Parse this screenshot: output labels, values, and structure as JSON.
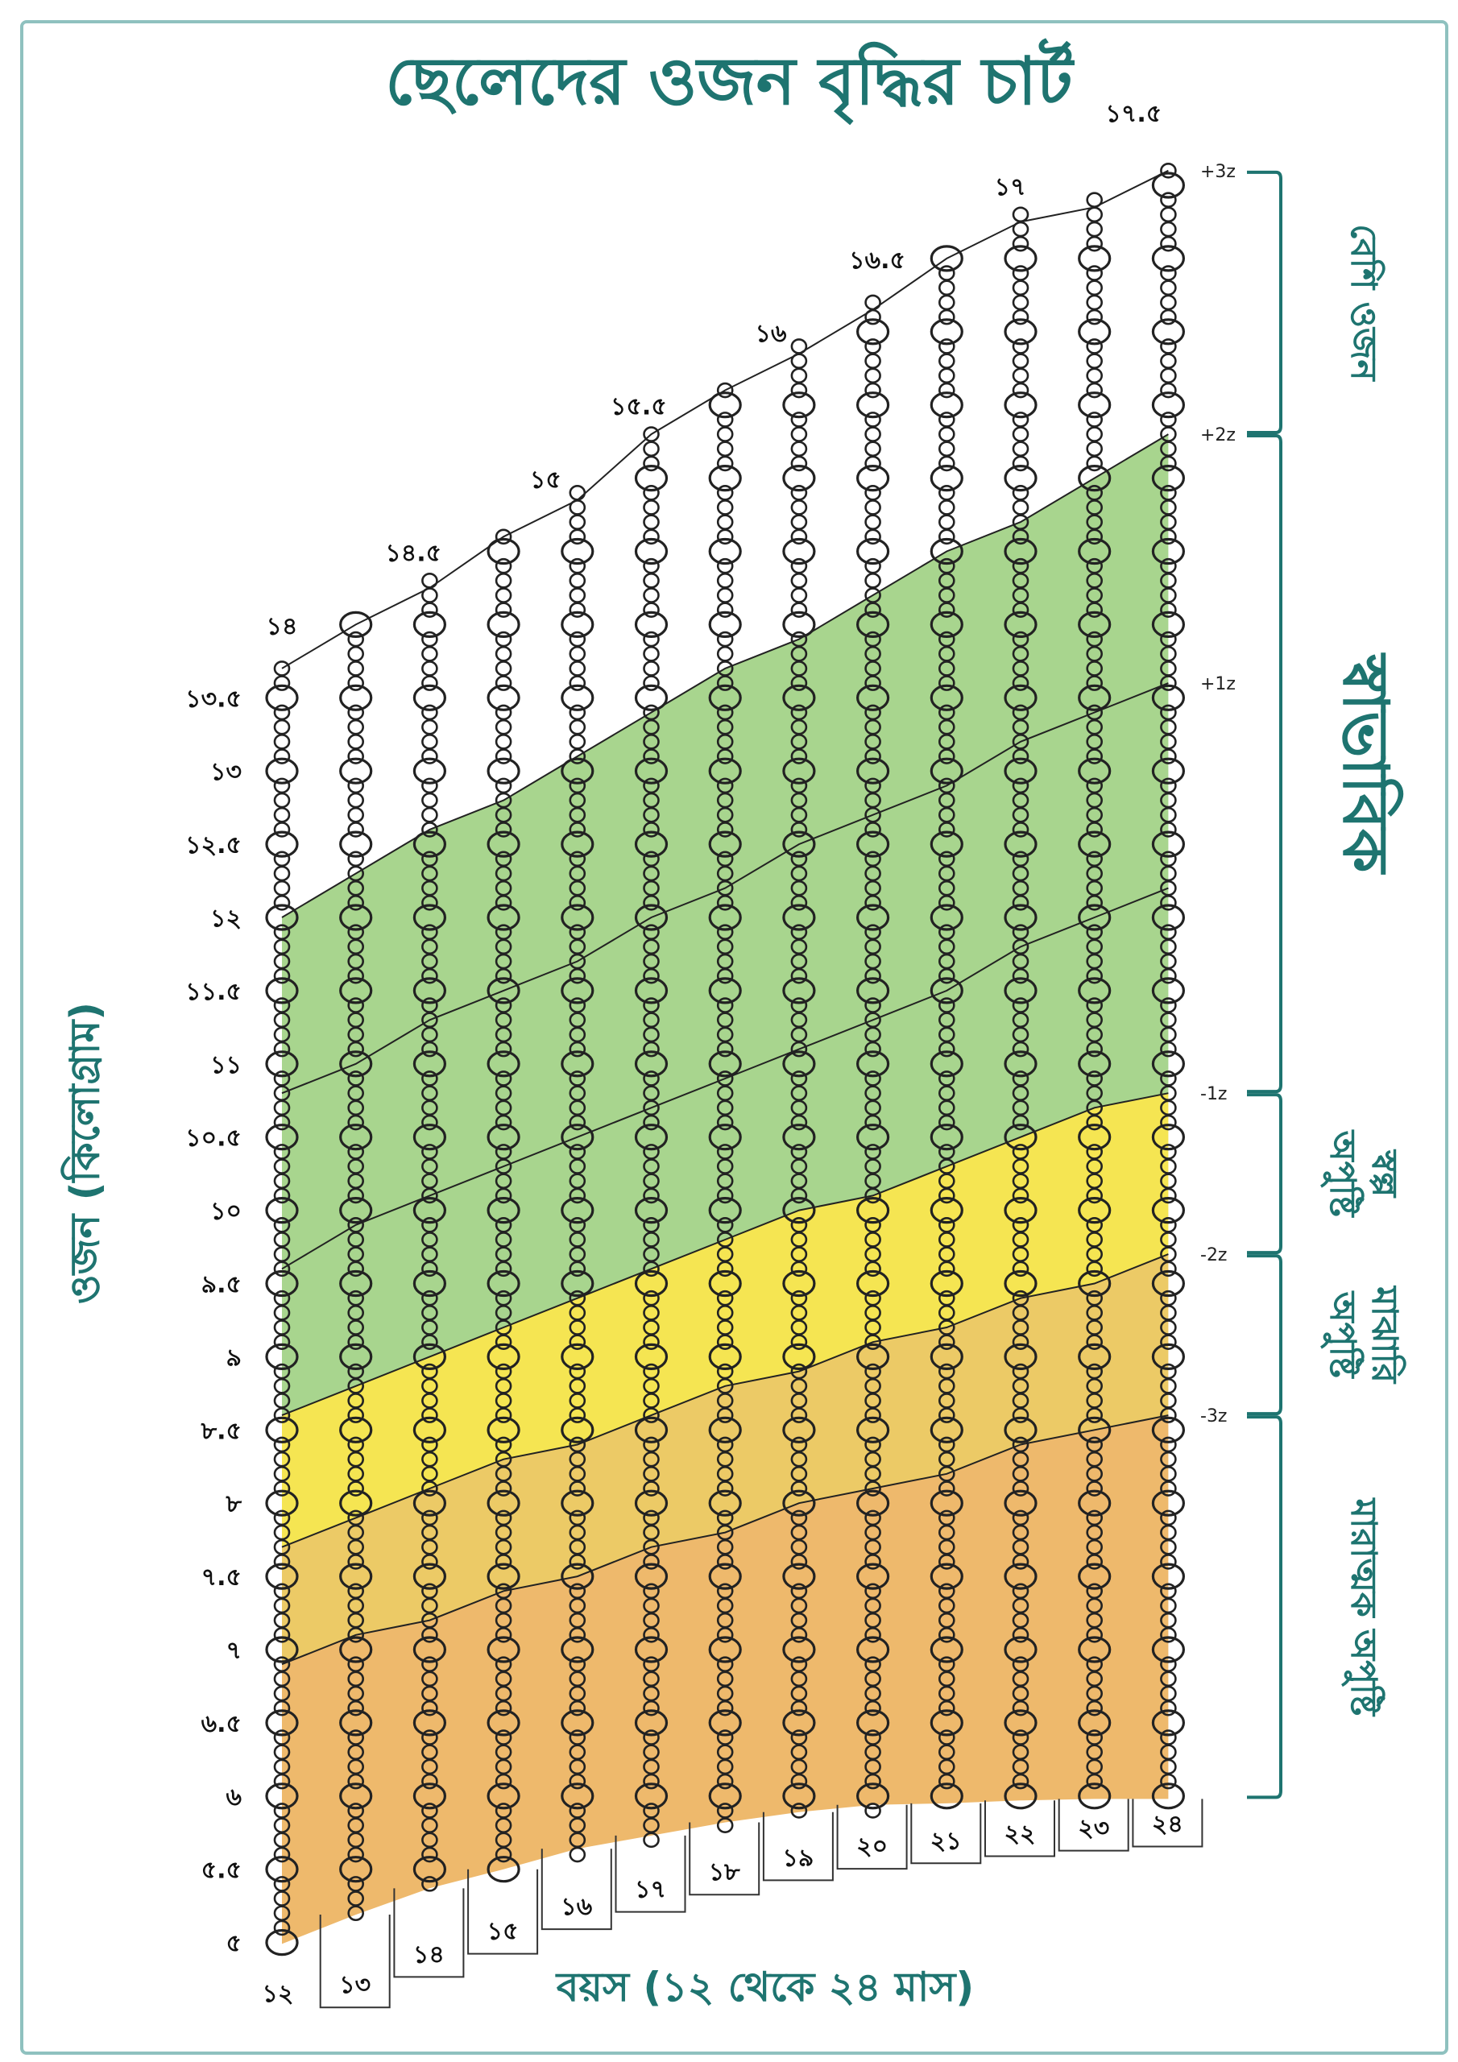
{
  "title": "ছেলেদের ওজন বৃদ্ধির চার্ট",
  "chart_data": {
    "type": "area",
    "title": "ছেলেদের ওজন বৃদ্ধির চার্ট",
    "xlabel": "বয়স (১২ থেকে ২৪ মাস)",
    "ylabel": "ওজন (কিলোগ্রাম)",
    "xlim": [
      12,
      24
    ],
    "ylim": [
      5,
      17.5
    ],
    "grid": false,
    "x": [
      12,
      13,
      14,
      15,
      16,
      17,
      18,
      19,
      20,
      21,
      22,
      23,
      24
    ],
    "x_tick_labels": [
      "১২",
      "১৩",
      "১৪",
      "১৫",
      "১৬",
      "১৭",
      "১৮",
      "১৯",
      "২০",
      "২১",
      "২২",
      "২৩",
      "২৪"
    ],
    "y_ticks": [
      {
        "value": 5,
        "label": "৫"
      },
      {
        "value": 5.5,
        "label": "৫.৫"
      },
      {
        "value": 6,
        "label": "৬"
      },
      {
        "value": 6.5,
        "label": "৬.৫"
      },
      {
        "value": 7,
        "label": "৭"
      },
      {
        "value": 7.5,
        "label": "৭.৫"
      },
      {
        "value": 8,
        "label": "৮"
      },
      {
        "value": 8.5,
        "label": "৮.৫"
      },
      {
        "value": 9,
        "label": "৯"
      },
      {
        "value": 9.5,
        "label": "৯.৫"
      },
      {
        "value": 10,
        "label": "১০"
      },
      {
        "value": 10.5,
        "label": "১০.৫"
      },
      {
        "value": 11,
        "label": "১১"
      },
      {
        "value": 11.5,
        "label": "১১.৫"
      },
      {
        "value": 12,
        "label": "১২"
      },
      {
        "value": 12.5,
        "label": "১২.৫"
      },
      {
        "value": 13,
        "label": "১৩"
      },
      {
        "value": 13.5,
        "label": "১৩.৫"
      }
    ],
    "top_labels": [
      {
        "value": 14,
        "label": "১৪"
      },
      {
        "value": 14.5,
        "label": "১৪.৫"
      },
      {
        "value": 15,
        "label": "১৫"
      },
      {
        "value": 15.5,
        "label": "১৫.৫"
      },
      {
        "value": 16,
        "label": "১৬"
      },
      {
        "value": 16.5,
        "label": "১৬.৫"
      },
      {
        "value": 17,
        "label": "১৭"
      },
      {
        "value": 17.5,
        "label": "১৭.৫"
      }
    ],
    "column_top_kg": [
      13.7,
      14.0,
      14.25,
      14.6,
      14.85,
      15.3,
      15.6,
      15.85,
      16.15,
      16.5,
      16.75,
      16.85,
      17.1
    ],
    "column_bottom_kg": [
      4.99,
      5.19,
      5.37,
      5.5,
      5.64,
      5.73,
      5.82,
      5.89,
      5.94,
      5.95,
      5.97,
      5.98,
      5.98
    ],
    "series": [
      {
        "z": 2,
        "values": [
          12.0,
          12.3,
          12.6,
          12.8,
          13.1,
          13.4,
          13.7,
          13.9,
          14.2,
          14.5,
          14.7,
          15.0,
          15.3
        ]
      },
      {
        "z": 1,
        "values": [
          10.8,
          11.0,
          11.3,
          11.5,
          11.7,
          12.0,
          12.2,
          12.5,
          12.7,
          12.9,
          13.2,
          13.4,
          13.6
        ]
      },
      {
        "z": 0,
        "values": [
          9.6,
          9.9,
          10.1,
          10.3,
          10.5,
          10.7,
          10.9,
          11.1,
          11.3,
          11.5,
          11.8,
          12.0,
          12.2
        ]
      },
      {
        "z": -1,
        "values": [
          8.6,
          8.8,
          9.0,
          9.2,
          9.4,
          9.6,
          9.8,
          10.0,
          10.1,
          10.3,
          10.5,
          10.7,
          10.8
        ]
      },
      {
        "z": -2,
        "values": [
          7.7,
          7.9,
          8.1,
          8.3,
          8.4,
          8.6,
          8.8,
          8.9,
          9.1,
          9.2,
          9.4,
          9.5,
          9.7
        ]
      },
      {
        "z": -3,
        "values": [
          6.9,
          7.1,
          7.2,
          7.4,
          7.5,
          7.7,
          7.8,
          8.0,
          8.1,
          8.2,
          8.4,
          8.5,
          8.6
        ]
      }
    ],
    "z_labels": [
      {
        "label": "+3z",
        "value": 17.1
      },
      {
        "label": "+2z",
        "value": 15.3
      },
      {
        "label": "+1z",
        "value": 13.6
      },
      {
        "label": "-1z",
        "value": 10.8
      },
      {
        "label": "-2z",
        "value": 9.7
      },
      {
        "label": "-3z",
        "value": 8.6
      }
    ],
    "bands": [
      {
        "lines": [
          "বেশি ওজন"
        ],
        "from_kg": 17.1,
        "to_kg": 15.3,
        "color": "#ffffff",
        "big": false
      },
      {
        "lines": [
          "স্বাভাবিক"
        ],
        "from_kg": 15.3,
        "to_kg": 10.8,
        "color": "#a8d58e",
        "big": true
      },
      {
        "lines": [
          "স্বল্প",
          "অপুষ্টি"
        ],
        "from_kg": 10.8,
        "to_kg": 9.7,
        "color": "#f5e552",
        "big": false
      },
      {
        "lines": [
          "মাঝারি",
          "অপুষ্টি"
        ],
        "from_kg": 9.7,
        "to_kg": 8.6,
        "color": "#ecca66",
        "big": false
      },
      {
        "lines": [
          "মারাত্মক অপুষ্টি"
        ],
        "from_kg": 8.6,
        "to_kg": 5.98,
        "color": "#eeb96c",
        "big": false
      }
    ],
    "accent_color": "#1e7470"
  }
}
